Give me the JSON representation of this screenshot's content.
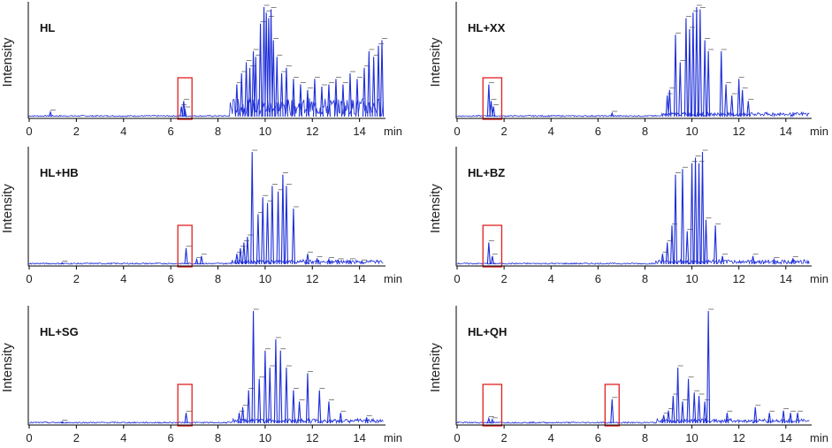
{
  "colors": {
    "trace": "#1f2fd8",
    "box": "#e02020",
    "axis": "#000000"
  },
  "chart_data": [
    {
      "type": "line",
      "title": "HL",
      "ylabel": "Intensity",
      "xlabel_unit": "min",
      "xlim": [
        0,
        15
      ],
      "xticks": [
        "0",
        "2",
        "4",
        "6",
        "8",
        "10",
        "12",
        "14"
      ],
      "highlights": [
        [
          6.3,
          6.9
        ]
      ],
      "series": [
        {
          "name": "HL",
          "x": [
            0.9,
            6.45,
            6.55,
            6.6,
            8.8,
            9.0,
            9.2,
            9.35,
            9.5,
            9.6,
            9.8,
            9.95,
            10.05,
            10.15,
            10.25,
            10.35,
            10.5,
            10.7,
            10.9,
            11.2,
            11.5,
            11.8,
            12.1,
            12.4,
            12.7,
            13.0,
            13.3,
            13.6,
            13.9,
            14.2,
            14.4,
            14.6,
            14.8,
            14.95
          ],
          "y": [
            0.05,
            0.1,
            0.15,
            0.08,
            0.3,
            0.4,
            0.5,
            0.45,
            0.6,
            0.55,
            0.85,
            1.0,
            0.95,
            0.9,
            0.98,
            0.7,
            0.55,
            0.4,
            0.45,
            0.35,
            0.3,
            0.25,
            0.35,
            0.28,
            0.3,
            0.35,
            0.3,
            0.4,
            0.35,
            0.45,
            0.6,
            0.55,
            0.65,
            0.7
          ]
        }
      ]
    },
    {
      "type": "line",
      "title": "HL+XX",
      "ylabel": "Intensity",
      "xlabel_unit": "min",
      "xlim": [
        0,
        15
      ],
      "xticks": [
        "0",
        "2",
        "4",
        "6",
        "8",
        "10",
        "12",
        "14"
      ],
      "highlights": [
        [
          1.1,
          1.9
        ]
      ],
      "series": [
        {
          "name": "HL+XX",
          "x": [
            1.35,
            1.45,
            1.55,
            6.6,
            8.95,
            9.05,
            9.3,
            9.5,
            9.75,
            9.9,
            10.05,
            10.2,
            10.35,
            10.55,
            10.7,
            11.25,
            11.45,
            11.7,
            12.0,
            12.15,
            12.4
          ],
          "y": [
            0.3,
            0.15,
            0.1,
            0.04,
            0.2,
            0.25,
            0.75,
            0.5,
            0.9,
            0.8,
            0.95,
            1.0,
            0.98,
            0.7,
            0.6,
            0.6,
            0.3,
            0.2,
            0.35,
            0.25,
            0.15
          ]
        }
      ]
    },
    {
      "type": "line",
      "title": "HL+HB",
      "ylabel": "Intensity",
      "xlabel_unit": "min",
      "xlim": [
        0,
        15
      ],
      "xticks": [
        "0",
        "2",
        "4",
        "6",
        "8",
        "10",
        "12",
        "14"
      ],
      "highlights": [
        [
          6.3,
          6.9
        ]
      ],
      "series": [
        {
          "name": "HL+HB",
          "x": [
            1.4,
            6.65,
            7.1,
            7.3,
            8.8,
            8.95,
            9.1,
            9.25,
            9.45,
            9.7,
            9.9,
            10.1,
            10.3,
            10.55,
            10.75,
            10.9,
            11.2,
            11.8,
            12.2,
            12.7,
            13.1,
            13.6,
            14.1
          ],
          "y": [
            0.02,
            0.15,
            0.05,
            0.08,
            0.1,
            0.15,
            0.2,
            0.25,
            1.0,
            0.45,
            0.6,
            0.55,
            0.7,
            0.65,
            0.8,
            0.7,
            0.5,
            0.1,
            0.06,
            0.05,
            0.04,
            0.04,
            0.03
          ]
        }
      ]
    },
    {
      "type": "line",
      "title": "HL+BZ",
      "ylabel": "Intensity",
      "xlabel_unit": "min",
      "xlim": [
        0,
        15
      ],
      "xticks": [
        "0",
        "2",
        "4",
        "6",
        "8",
        "10",
        "12",
        "14"
      ],
      "highlights": [
        [
          1.1,
          1.9
        ]
      ],
      "series": [
        {
          "name": "HL+BZ",
          "x": [
            1.35,
            1.5,
            8.75,
            8.95,
            9.15,
            9.3,
            9.6,
            9.8,
            10.0,
            10.15,
            10.3,
            10.45,
            10.6,
            11.0,
            11.3,
            12.6,
            13.5,
            14.3
          ],
          "y": [
            0.2,
            0.08,
            0.1,
            0.2,
            0.35,
            0.8,
            0.85,
            0.3,
            0.9,
            0.95,
            0.9,
            1.0,
            0.4,
            0.35,
            0.08,
            0.08,
            0.05,
            0.06
          ]
        }
      ]
    },
    {
      "type": "line",
      "title": "HL+SG",
      "ylabel": "Intensity",
      "xlabel_unit": "min",
      "xlim": [
        0,
        15
      ],
      "xticks": [
        "0",
        "2",
        "4",
        "6",
        "8",
        "10",
        "12",
        "14"
      ],
      "highlights": [
        [
          6.3,
          6.9
        ]
      ],
      "series": [
        {
          "name": "HL+SG",
          "x": [
            1.4,
            6.65,
            8.9,
            9.05,
            9.3,
            9.5,
            9.75,
            10.0,
            10.2,
            10.45,
            10.65,
            10.9,
            11.2,
            11.45,
            11.8,
            12.3,
            12.7,
            13.2,
            14.3
          ],
          "y": [
            0.02,
            0.1,
            0.1,
            0.15,
            0.3,
            1.0,
            0.4,
            0.65,
            0.5,
            0.75,
            0.65,
            0.5,
            0.3,
            0.2,
            0.45,
            0.3,
            0.2,
            0.1,
            0.06
          ]
        }
      ]
    },
    {
      "type": "line",
      "title": "HL+QH",
      "ylabel": "Intensity",
      "xlabel_unit": "min",
      "xlim": [
        0,
        15
      ],
      "xticks": [
        "0",
        "2",
        "4",
        "6",
        "8",
        "10",
        "12",
        "14"
      ],
      "highlights": [
        [
          1.1,
          1.9
        ],
        [
          6.3,
          6.9
        ]
      ],
      "series": [
        {
          "name": "HL+QH",
          "x": [
            1.35,
            1.5,
            6.6,
            8.8,
            9.0,
            9.2,
            9.4,
            9.6,
            9.85,
            10.1,
            10.3,
            10.55,
            10.7,
            11.5,
            12.7,
            13.3,
            13.9,
            14.2,
            14.5
          ],
          "y": [
            0.05,
            0.04,
            0.22,
            0.08,
            0.12,
            0.25,
            0.5,
            0.2,
            0.4,
            0.28,
            0.25,
            0.2,
            1.0,
            0.1,
            0.15,
            0.1,
            0.12,
            0.1,
            0.1
          ]
        }
      ]
    }
  ]
}
